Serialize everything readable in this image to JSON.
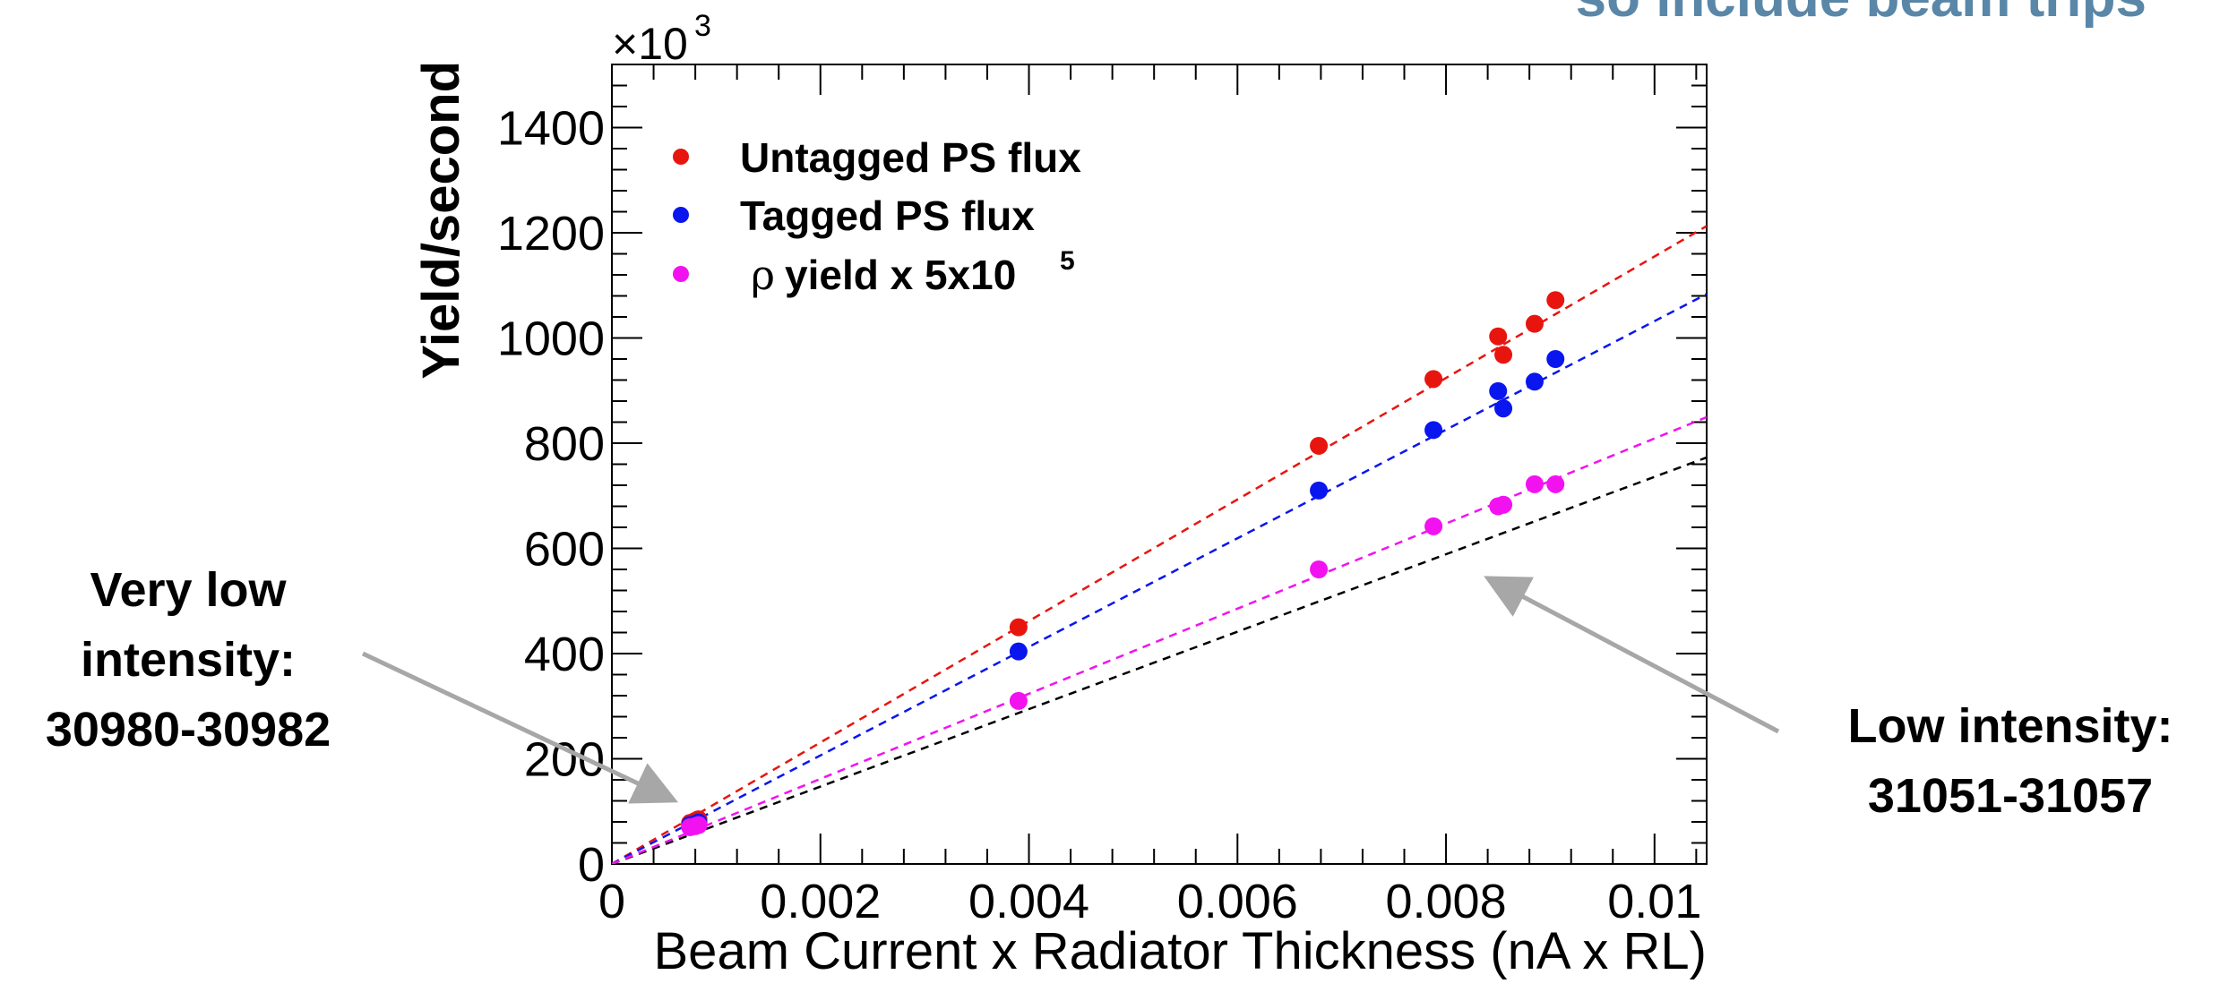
{
  "top_note": "so include beam trips",
  "annotations": {
    "left_lines": [
      "Very low",
      "intensity:",
      "30980-30982"
    ],
    "right_lines": [
      "Low intensity:",
      "31051-31057"
    ]
  },
  "chart_data": {
    "type": "scatter",
    "title": "",
    "xlabel": "Beam Current x Radiator Thickness (nA x RL)",
    "ylabel": "Yield/second",
    "y_multiplier_label": "×10",
    "y_multiplier_exponent": "3",
    "xlim": [
      0,
      0.0105
    ],
    "ylim": [
      0,
      1520
    ],
    "x_ticks": [
      0,
      0.002,
      0.004,
      0.006,
      0.008,
      0.01
    ],
    "x_tick_labels": [
      "0",
      "0.002",
      "0.004",
      "0.006",
      "0.008",
      "0.01"
    ],
    "y_ticks": [
      0,
      200,
      400,
      600,
      800,
      1000,
      1200,
      1400
    ],
    "y_tick_labels": [
      "0",
      "200",
      "400",
      "600",
      "800",
      "1000",
      "1200",
      "1400"
    ],
    "grid": false,
    "legend_position": "top-left",
    "series": [
      {
        "name": "Untagged PS flux",
        "color": "#e8150f",
        "x": [
          0.00075,
          0.0008,
          0.00083,
          0.0039,
          0.00678,
          0.00788,
          0.0085,
          0.00855,
          0.00885,
          0.00905
        ],
        "y": [
          78,
          82,
          85,
          450,
          795,
          922,
          1003,
          968,
          1027,
          1072
        ],
        "fit_slope": 115500
      },
      {
        "name": "Tagged PS flux",
        "color": "#0a16ee",
        "x": [
          0.00075,
          0.0008,
          0.00083,
          0.0039,
          0.00678,
          0.00788,
          0.0085,
          0.00855,
          0.00885,
          0.00905
        ],
        "y": [
          74,
          76,
          79,
          404,
          710,
          825,
          899,
          866,
          917,
          960
        ],
        "fit_slope": 103200
      },
      {
        "name": "yield x 5x10",
        "name_prefix": "ρ",
        "name_superscript": "5",
        "color": "#f212f0",
        "x": [
          0.00075,
          0.0008,
          0.00083,
          0.0039,
          0.00678,
          0.00788,
          0.0085,
          0.00855,
          0.00885,
          0.00905
        ],
        "y": [
          70,
          72,
          74,
          310,
          560,
          642,
          680,
          683,
          722,
          722
        ],
        "fit_slope": 80900
      }
    ],
    "extra_line": {
      "color": "#000000",
      "fit_slope": 73600
    }
  }
}
